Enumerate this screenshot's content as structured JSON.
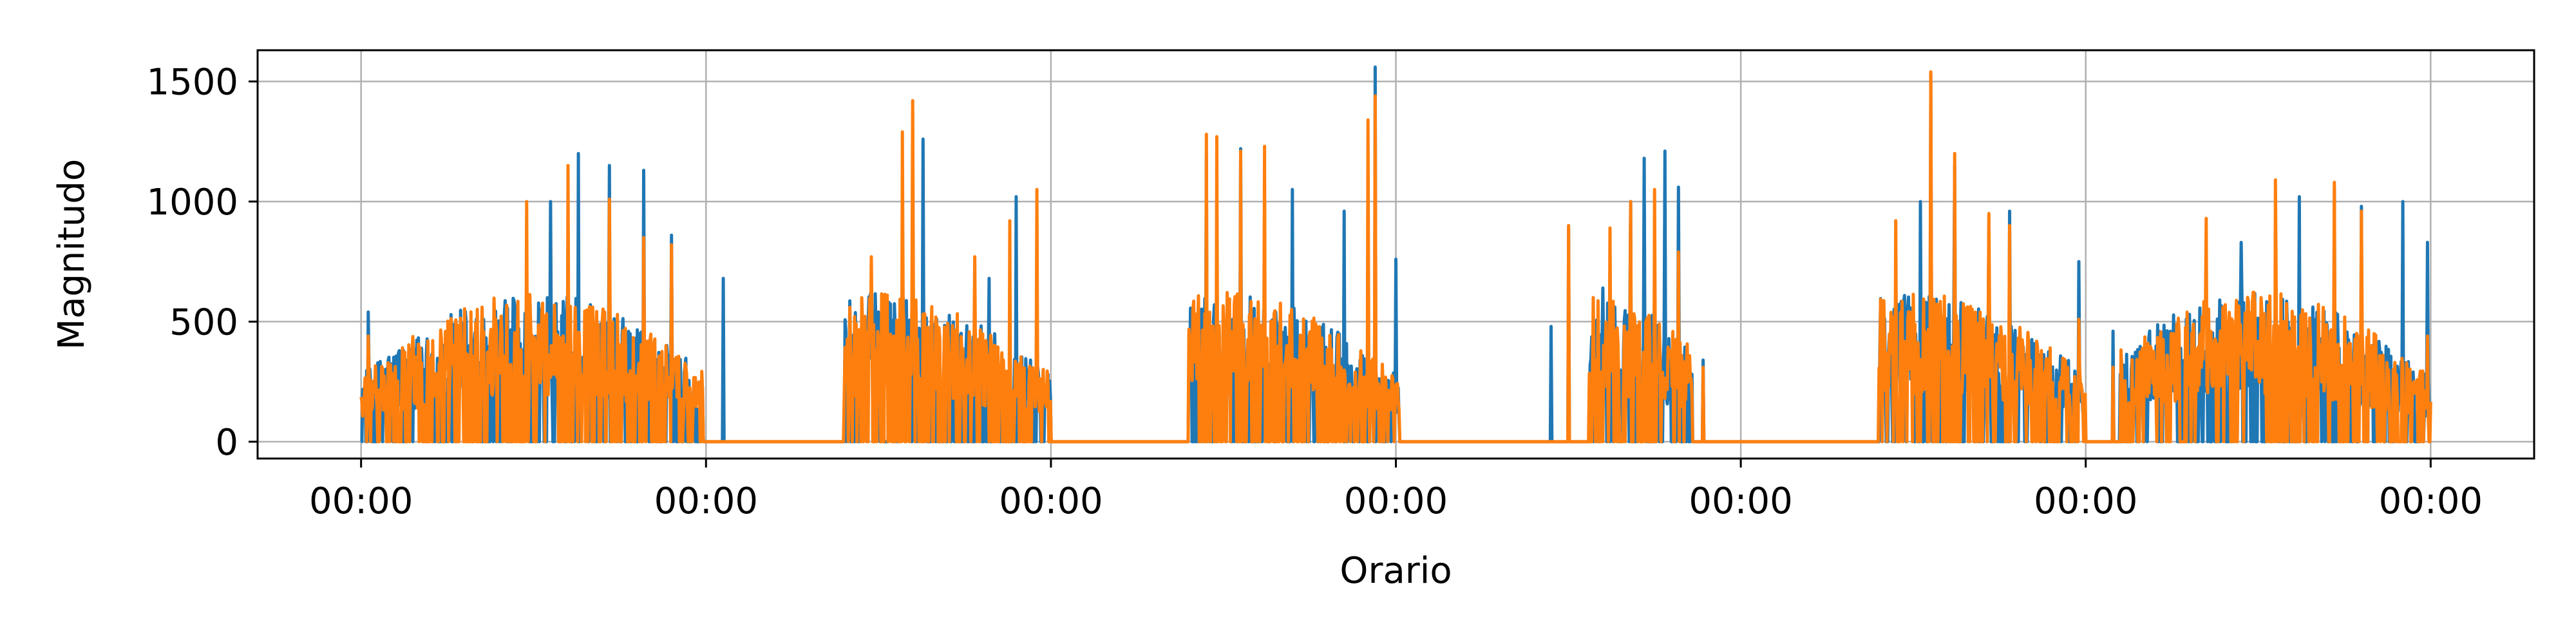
{
  "chart_data": {
    "type": "line",
    "title": "",
    "xlabel": "Orario",
    "ylabel": "Magnitudo",
    "grid": true,
    "legend": "none",
    "x_unit": "days",
    "xlim": [
      -0.3,
      6.3
    ],
    "ylim": [
      -70,
      1630
    ],
    "x_ticks": [
      0,
      1,
      2,
      3,
      4,
      5,
      6
    ],
    "x_tick_labels": [
      "00:00",
      "00:00",
      "00:00",
      "00:00",
      "00:00",
      "00:00",
      "00:00"
    ],
    "y_ticks": [
      0,
      500,
      1000,
      1500
    ],
    "y_tick_labels": [
      "0",
      "500",
      "1000",
      "1500"
    ],
    "series": [
      {
        "color": "#1f77b4",
        "activity": [
          [
            0,
            0.99
          ],
          [
            1.4,
            2.0
          ],
          [
            2.4,
            3.01
          ],
          [
            3.56,
            3.86
          ],
          [
            4.4,
            5.0
          ],
          [
            5.1,
            6.0
          ]
        ],
        "peaks": [
          [
            0.02,
            540
          ],
          [
            0.35,
            560
          ],
          [
            0.55,
            1000
          ],
          [
            0.63,
            1200
          ],
          [
            0.72,
            1150
          ],
          [
            0.82,
            1130
          ],
          [
            0.9,
            860
          ],
          [
            1.05,
            680
          ],
          [
            1.5,
            540
          ],
          [
            1.6,
            760
          ],
          [
            1.63,
            1260
          ],
          [
            1.82,
            680
          ],
          [
            1.9,
            1020
          ],
          [
            1.48,
            580
          ],
          [
            2.45,
            1200
          ],
          [
            2.55,
            1220
          ],
          [
            2.7,
            1050
          ],
          [
            2.85,
            960
          ],
          [
            2.94,
            1560
          ],
          [
            3.0,
            760
          ],
          [
            3.45,
            480
          ],
          [
            3.5,
            890
          ],
          [
            3.6,
            640
          ],
          [
            3.68,
            1000
          ],
          [
            3.72,
            1180
          ],
          [
            3.78,
            1210
          ],
          [
            3.82,
            1060
          ],
          [
            3.89,
            340
          ],
          [
            4.45,
            760
          ],
          [
            4.52,
            1000
          ],
          [
            4.55,
            1530
          ],
          [
            4.62,
            1150
          ],
          [
            4.72,
            880
          ],
          [
            4.78,
            960
          ],
          [
            4.98,
            750
          ],
          [
            5.08,
            460
          ],
          [
            5.3,
            530
          ],
          [
            5.45,
            830
          ],
          [
            5.62,
            1020
          ],
          [
            5.72,
            1050
          ],
          [
            5.8,
            980
          ],
          [
            5.92,
            1000
          ],
          [
            5.99,
            830
          ]
        ],
        "values_range": [
          0,
          1560
        ]
      },
      {
        "color": "#ff7f0e",
        "activity": [
          [
            0,
            0.99
          ],
          [
            1.4,
            2.0
          ],
          [
            2.4,
            3.01
          ],
          [
            3.56,
            3.86
          ],
          [
            4.4,
            5.0
          ],
          [
            5.1,
            6.0
          ]
        ],
        "peaks": [
          [
            0.02,
            440
          ],
          [
            0.35,
            560
          ],
          [
            0.48,
            1000
          ],
          [
            0.6,
            1150
          ],
          [
            0.72,
            1010
          ],
          [
            0.82,
            850
          ],
          [
            0.9,
            820
          ],
          [
            1.48,
            770
          ],
          [
            1.57,
            1290
          ],
          [
            1.6,
            1420
          ],
          [
            1.78,
            770
          ],
          [
            1.88,
            920
          ],
          [
            1.96,
            1050
          ],
          [
            2.45,
            1280
          ],
          [
            2.48,
            1270
          ],
          [
            2.55,
            1210
          ],
          [
            2.62,
            1230
          ],
          [
            2.92,
            1340
          ],
          [
            2.94,
            1440
          ],
          [
            3.5,
            900
          ],
          [
            3.62,
            890
          ],
          [
            3.68,
            1000
          ],
          [
            3.75,
            1050
          ],
          [
            3.82,
            790
          ],
          [
            3.89,
            310
          ],
          [
            4.45,
            920
          ],
          [
            4.55,
            1540
          ],
          [
            4.62,
            1200
          ],
          [
            4.72,
            950
          ],
          [
            4.78,
            900
          ],
          [
            4.98,
            510
          ],
          [
            5.08,
            310
          ],
          [
            5.35,
            930
          ],
          [
            5.55,
            1090
          ],
          [
            5.72,
            1080
          ],
          [
            5.8,
            960
          ],
          [
            5.99,
            440
          ]
        ],
        "values_range": [
          0,
          1540
        ]
      }
    ]
  }
}
